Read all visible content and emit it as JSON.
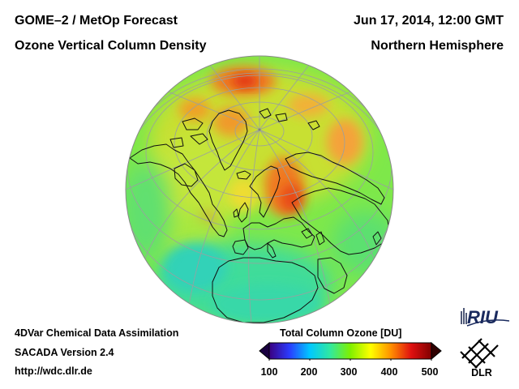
{
  "header": {
    "title_line1": "GOME–2 / MetOp Forecast",
    "title_line2": "Ozone Vertical Column Density",
    "date": "Jun 17, 2014, 12:00 GMT",
    "region": "Northern Hemisphere"
  },
  "footer": {
    "line1": "4DVar Chemical Data Assimilation",
    "line2": "SACADA Version 2.4",
    "line3": "http://wdc.dlr.de"
  },
  "colorbar": {
    "title": "Total Column Ozone [DU]",
    "min": 100,
    "max": 500,
    "ticks": [
      "100",
      "200",
      "300",
      "400",
      "500"
    ],
    "colors": [
      "#3a0080",
      "#2a3cff",
      "#00c8ff",
      "#30e8a0",
      "#80f000",
      "#ffff00",
      "#ff9000",
      "#e01010",
      "#800000"
    ]
  },
  "logos": {
    "riu": "RIU",
    "dlr": "DLR"
  },
  "map": {
    "projection": "orthographic, Northern Hemisphere",
    "dominant_color": "#7ee84a"
  }
}
